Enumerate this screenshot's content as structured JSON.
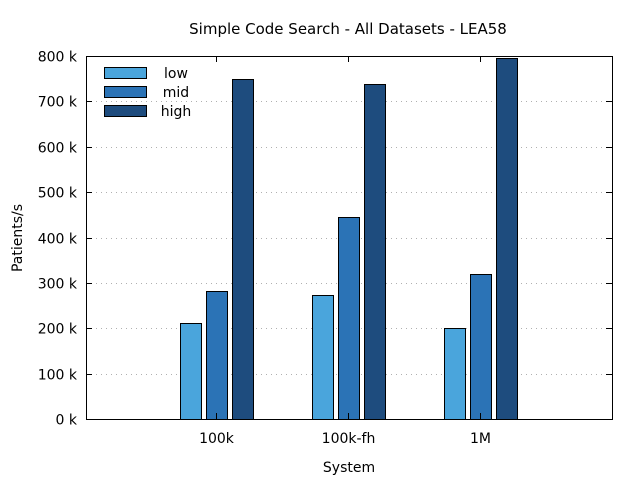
{
  "chart_data": {
    "type": "bar",
    "title": "Simple Code Search - All Datasets - LEA58",
    "xlabel": "System",
    "ylabel": "Patients/s",
    "categories": [
      "100k",
      "100k-fh",
      "1M"
    ],
    "series": [
      {
        "name": "low",
        "values": [
          212000,
          274000,
          201000
        ],
        "color": "#4aa5dc"
      },
      {
        "name": "mid",
        "values": [
          283000,
          446000,
          319000
        ],
        "color": "#2b73b6"
      },
      {
        "name": "high",
        "values": [
          750000,
          739000,
          795000
        ],
        "color": "#1e4c7e"
      }
    ],
    "ylim": [
      0,
      800000
    ],
    "yticks": [
      0,
      100000,
      200000,
      300000,
      400000,
      500000,
      600000,
      700000,
      800000
    ],
    "ytick_labels": [
      "0 k",
      "100 k",
      "200 k",
      "300 k",
      "400 k",
      "500 k",
      "600 k",
      "700 k",
      "800 k"
    ],
    "grid": "horizontal dotted",
    "legend_position": "top-left"
  }
}
